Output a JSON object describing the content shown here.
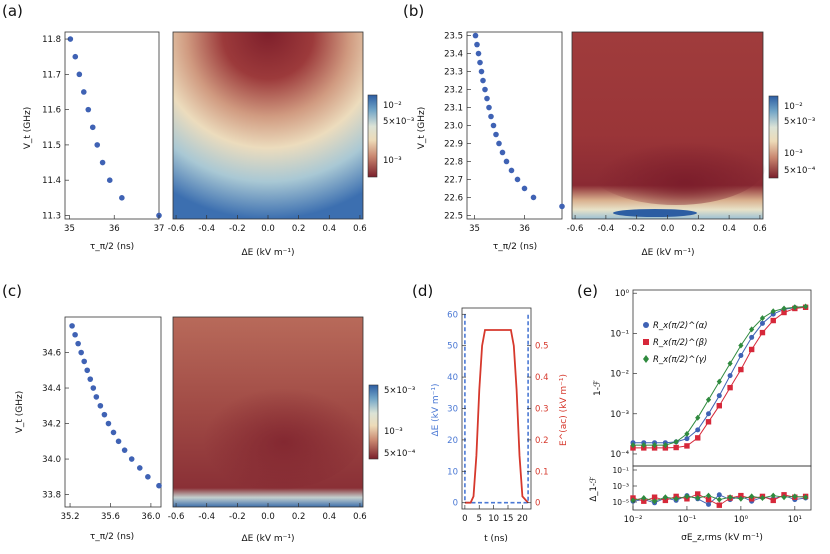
{
  "chart_data": [
    {
      "panel": "(a)",
      "type": "scatter",
      "xlabel": "τ_π/2 (ns)",
      "ylabel": "V_t (GHz)",
      "xlim": [
        34.9,
        37.0
      ],
      "ylim": [
        11.29,
        11.82
      ],
      "xticks": [
        "35",
        "36",
        "37"
      ],
      "yticks": [
        "11.3",
        "11.4",
        "11.5",
        "11.6",
        "11.7",
        "11.8"
      ],
      "x": [
        35.02,
        35.13,
        35.22,
        35.32,
        35.42,
        35.52,
        35.62,
        35.74,
        35.9,
        36.17,
        37.0
      ],
      "y": [
        11.8,
        11.75,
        11.7,
        11.65,
        11.6,
        11.55,
        11.5,
        11.45,
        11.4,
        11.35,
        11.3
      ],
      "heatmap": {
        "xlabel": "ΔE (kV m⁻¹)",
        "xlim": [
          -0.62,
          0.62
        ],
        "xticks": [
          "-0.6",
          "-0.4",
          "-0.2",
          "0.0",
          "0.2",
          "0.4",
          "0.6"
        ]
      },
      "colorbar": {
        "ticks": [
          "10⁻²",
          "5×10⁻³",
          "10⁻³"
        ]
      }
    },
    {
      "panel": "(b)",
      "type": "scatter",
      "xlabel": "τ_π/2 (ns)",
      "ylabel": "V_t (GHz)",
      "xlim": [
        34.85,
        36.75
      ],
      "ylim": [
        22.48,
        23.52
      ],
      "xticks": [
        "35",
        "36"
      ],
      "yticks": [
        "22.5",
        "22.6",
        "22.7",
        "22.8",
        "22.9",
        "23.0",
        "23.1",
        "23.2",
        "23.3",
        "23.4",
        "23.5"
      ],
      "x": [
        35.02,
        35.05,
        35.08,
        35.11,
        35.14,
        35.17,
        35.21,
        35.25,
        35.29,
        35.33,
        35.38,
        35.43,
        35.49,
        35.56,
        35.64,
        35.74,
        35.86,
        36.0,
        36.18,
        36.75
      ],
      "y": [
        23.5,
        23.45,
        23.4,
        23.35,
        23.3,
        23.25,
        23.2,
        23.15,
        23.1,
        23.05,
        23.0,
        22.95,
        22.9,
        22.85,
        22.8,
        22.75,
        22.7,
        22.65,
        22.6,
        22.55
      ],
      "heatmap": {
        "xlabel": "ΔE (kV m⁻¹)",
        "xlim": [
          -0.62,
          0.62
        ],
        "xticks": [
          "-0.6",
          "-0.4",
          "-0.2",
          "0.0",
          "0.2",
          "0.4",
          "0.6"
        ]
      },
      "colorbar": {
        "ticks": [
          "10⁻²",
          "5×10⁻³",
          "10⁻³",
          "5×10⁻⁴"
        ]
      }
    },
    {
      "panel": "(c)",
      "type": "scatter",
      "xlabel": "τ_π/2 (ns)",
      "ylabel": "V_t (GHz)",
      "xlim": [
        35.15,
        36.1
      ],
      "ylim": [
        33.73,
        34.8
      ],
      "xticks": [
        "35.2",
        "35.6",
        "36.0"
      ],
      "yticks": [
        "33.8",
        "34.0",
        "34.2",
        "34.4",
        "34.6"
      ],
      "x": [
        35.22,
        35.25,
        35.28,
        35.31,
        35.34,
        35.37,
        35.4,
        35.43,
        35.46,
        35.5,
        35.54,
        35.58,
        35.63,
        35.68,
        35.74,
        35.81,
        35.89,
        35.97,
        36.08
      ],
      "y": [
        34.75,
        34.7,
        34.65,
        34.6,
        34.55,
        34.5,
        34.45,
        34.4,
        34.35,
        34.3,
        34.25,
        34.2,
        34.15,
        34.1,
        34.05,
        34.0,
        33.95,
        33.9,
        33.85
      ],
      "heatmap": {
        "xlabel": "ΔE (kV m⁻¹)",
        "xlim": [
          -0.62,
          0.62
        ],
        "xticks": [
          "-0.6",
          "-0.4",
          "-0.2",
          "0.0",
          "0.2",
          "0.4",
          "0.6"
        ]
      },
      "colorbar": {
        "ticks": [
          "5×10⁻³",
          "10⁻³",
          "5×10⁻⁴"
        ]
      }
    },
    {
      "panel": "(d)",
      "type": "line",
      "xlabel": "t (ns)",
      "ylabel_left": "ΔE (kV m⁻¹)",
      "ylabel_right": "E^(ac) (kV m⁻¹)",
      "xlim": [
        -1,
        23
      ],
      "ylim_left": [
        -2,
        62
      ],
      "ylim_right": [
        -0.02,
        0.62
      ],
      "xticks": [
        "0",
        "5",
        "10",
        "15",
        "20"
      ],
      "yticks_left": [
        "0",
        "10",
        "20",
        "30",
        "40",
        "50",
        "60"
      ],
      "yticks_right": [
        "0",
        "0.1",
        "0.2",
        "0.3",
        "0.4",
        "0.5"
      ],
      "series": [
        {
          "name": "ΔE",
          "color": "#4a78d4",
          "style": "dashed",
          "x": [
            0,
            0,
            22,
            22
          ],
          "values": [
            60,
            0,
            0,
            60
          ]
        },
        {
          "name": "E^(ac)",
          "color": "#d6382c",
          "x": [
            0,
            2,
            3,
            4,
            5,
            6,
            7,
            8,
            15,
            16,
            17,
            18,
            19,
            20,
            22
          ],
          "values": [
            0,
            0,
            0.02,
            0.15,
            0.36,
            0.5,
            0.55,
            0.55,
            0.55,
            0.55,
            0.5,
            0.36,
            0.15,
            0.02,
            0
          ]
        }
      ]
    },
    {
      "panel": "(e)",
      "type": "line",
      "xlabel": "σE_z,rms (kV m⁻¹)",
      "ylabel": "1-ℱ",
      "ylabel_lower": "Δ_1-ℱ",
      "xscale": "log",
      "yscale": "log",
      "xlim_exp": [
        -2,
        1.3
      ],
      "ylim_exp": [
        -4.3,
        0.08
      ],
      "xticks": [
        "10⁻²",
        "10⁻¹",
        "10⁰",
        "10¹"
      ],
      "yticks": [
        "10⁻⁴",
        "10⁻³",
        "10⁻²",
        "10⁻¹",
        "10⁰"
      ],
      "lower_yticks": [
        "10⁻¹",
        "10⁻³",
        "10⁻⁵"
      ],
      "lower_ylim_exp": [
        -6,
        -0.5
      ],
      "series": [
        {
          "name": "R_x(π/2)^(α)",
          "color": "#3f62b4",
          "marker": "circle",
          "x_exp": [
            -2.0,
            -1.8,
            -1.6,
            -1.4,
            -1.2,
            -1.0,
            -0.8,
            -0.6,
            -0.4,
            -0.2,
            0.0,
            0.2,
            0.4,
            0.6,
            0.8,
            1.0,
            1.2
          ],
          "y_exp": [
            -3.72,
            -3.72,
            -3.72,
            -3.72,
            -3.7,
            -3.62,
            -3.4,
            -3.0,
            -2.55,
            -2.05,
            -1.55,
            -1.1,
            -0.75,
            -0.52,
            -0.4,
            -0.36,
            -0.35
          ],
          "lower_y_exp": [
            -4.9,
            -4.7,
            -5.1,
            -4.5,
            -4.8,
            -4.2,
            -4.6,
            -5.3,
            -4.1,
            -4.7,
            -4.3,
            -4.9,
            -4.4,
            -4.6,
            -4.2,
            -4.7,
            -4.5
          ]
        },
        {
          "name": "R_x(π/2)^(β)",
          "color": "#d6283a",
          "marker": "square",
          "x_exp": [
            -2.0,
            -1.8,
            -1.6,
            -1.4,
            -1.2,
            -1.0,
            -0.8,
            -0.6,
            -0.4,
            -0.2,
            0.0,
            0.2,
            0.4,
            0.6,
            0.8,
            1.0,
            1.2
          ],
          "y_exp": [
            -3.85,
            -3.85,
            -3.85,
            -3.85,
            -3.84,
            -3.8,
            -3.6,
            -3.2,
            -2.8,
            -2.35,
            -1.9,
            -1.4,
            -0.98,
            -0.68,
            -0.48,
            -0.38,
            -0.35
          ],
          "lower_y_exp": [
            -4.5,
            -4.9,
            -4.4,
            -4.8,
            -4.3,
            -4.6,
            -4.0,
            -4.7,
            -5.4,
            -4.5,
            -4.2,
            -4.6,
            -4.3,
            -4.8,
            -4.1,
            -4.4,
            -4.3
          ]
        },
        {
          "name": "R_x(π/2)^(γ)",
          "color": "#2f8a3e",
          "marker": "diamond",
          "x_exp": [
            -2.0,
            -1.8,
            -1.6,
            -1.4,
            -1.2,
            -1.0,
            -0.8,
            -0.6,
            -0.4,
            -0.2,
            0.0,
            0.2,
            0.4,
            0.6,
            0.8,
            1.0,
            1.2
          ],
          "y_exp": [
            -3.78,
            -3.78,
            -3.78,
            -3.78,
            -3.7,
            -3.5,
            -3.1,
            -2.65,
            -2.2,
            -1.75,
            -1.3,
            -0.9,
            -0.62,
            -0.45,
            -0.38,
            -0.35,
            -0.33
          ],
          "lower_y_exp": [
            -4.8,
            -4.5,
            -4.9,
            -4.4,
            -4.6,
            -4.3,
            -4.5,
            -4.2,
            -4.7,
            -4.4,
            -4.6,
            -4.3,
            -4.5,
            -4.2,
            -4.4,
            -4.3,
            -4.4
          ]
        }
      ]
    }
  ]
}
